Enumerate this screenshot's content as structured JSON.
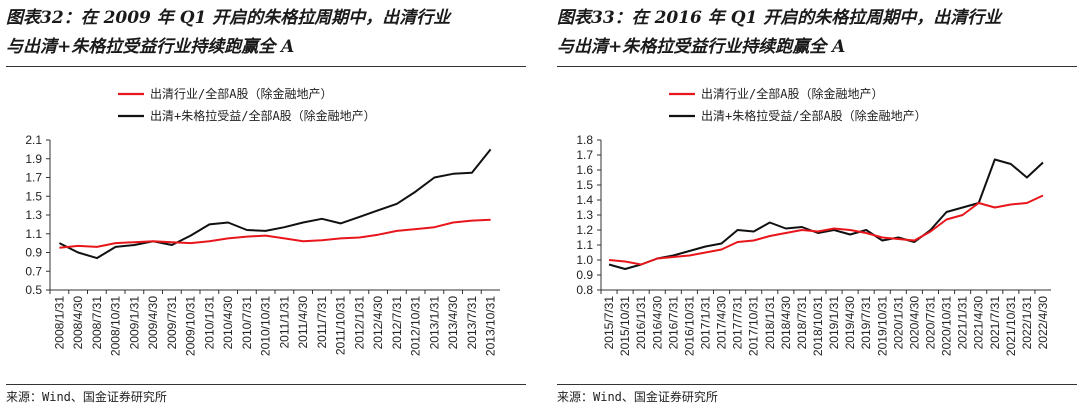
{
  "charts": [
    {
      "title_line1": "图表32：在 2009 年 Q1 开启的朱格拉周期中，出清行业",
      "title_line2": "与出清+朱格拉受益行业持续跑赢全 A",
      "source": "来源：Wind、国金证券研究所"
    },
    {
      "title_line1": "图表33：在 2016 年 Q1 开启的朱格拉周期中，出清行业",
      "title_line2": "与出清+朱格拉受益行业持续跑赢全 A",
      "source": "来源：Wind、国金证券研究所"
    }
  ],
  "colors": {
    "series_red": "#e8161b",
    "series_black": "#111111",
    "axis": "#333333"
  },
  "chart_data": [
    {
      "type": "line",
      "ylim": [
        0.5,
        2.1
      ],
      "yticks": [
        "2.1",
        "1.9",
        "1.7",
        "1.5",
        "1.3",
        "1.1",
        "0.9",
        "0.7",
        "0.5"
      ],
      "x_labels": [
        "2008/1/31",
        "2008/4/30",
        "2008/7/31",
        "2008/10/31",
        "2009/1/31",
        "2009/4/30",
        "2009/7/31",
        "2009/10/31",
        "2010/1/31",
        "2010/4/30",
        "2010/7/31",
        "2010/10/31",
        "2011/1/31",
        "2011/4/30",
        "2011/7/31",
        "2011/10/31",
        "2012/1/31",
        "2012/4/30",
        "2012/7/31",
        "2012/10/31",
        "2013/1/31",
        "2013/4/30",
        "2013/7/31",
        "2013/10/31"
      ],
      "series": [
        {
          "name": "出清行业/全部A股（除金融地产）",
          "color": "#e8161b",
          "values": [
            0.95,
            0.97,
            0.96,
            1.0,
            1.01,
            1.02,
            1.01,
            1.0,
            1.02,
            1.05,
            1.07,
            1.08,
            1.05,
            1.02,
            1.03,
            1.05,
            1.06,
            1.09,
            1.13,
            1.15,
            1.17,
            1.22,
            1.24,
            1.25
          ]
        },
        {
          "name": "出清+朱格拉受益/全部A股（除金融地产）",
          "color": "#111111",
          "values": [
            1.0,
            0.9,
            0.84,
            0.96,
            0.98,
            1.02,
            0.98,
            1.08,
            1.2,
            1.22,
            1.14,
            1.13,
            1.17,
            1.22,
            1.26,
            1.21,
            1.28,
            1.35,
            1.42,
            1.55,
            1.7,
            1.74,
            1.75,
            2.0
          ]
        }
      ],
      "legend": "top-left"
    },
    {
      "type": "line",
      "ylim": [
        0.8,
        1.8
      ],
      "yticks": [
        "1.8",
        "1.7",
        "1.6",
        "1.5",
        "1.4",
        "1.3",
        "1.2",
        "1.1",
        "1.0",
        "0.9",
        "0.8"
      ],
      "x_labels": [
        "2015/7/31",
        "2015/10/31",
        "2016/1/31",
        "2016/4/30",
        "2016/7/31",
        "2016/10/31",
        "2017/1/31",
        "2017/4/30",
        "2017/7/31",
        "2017/10/31",
        "2018/1/31",
        "2018/4/30",
        "2018/7/31",
        "2018/10/31",
        "2019/1/31",
        "2019/4/30",
        "2019/7/31",
        "2019/10/31",
        "2020/1/31",
        "2020/4/30",
        "2020/7/31",
        "2020/10/31",
        "2021/1/31",
        "2021/4/30",
        "2021/7/31",
        "2021/10/31",
        "2022/1/31",
        "2022/4/30"
      ],
      "series": [
        {
          "name": "出清行业/全部A股（除金融地产）",
          "color": "#e8161b",
          "values": [
            1.0,
            0.99,
            0.97,
            1.01,
            1.02,
            1.03,
            1.05,
            1.07,
            1.12,
            1.13,
            1.16,
            1.18,
            1.2,
            1.19,
            1.21,
            1.2,
            1.18,
            1.15,
            1.14,
            1.13,
            1.19,
            1.27,
            1.3,
            1.38,
            1.35,
            1.37,
            1.38,
            1.43
          ]
        },
        {
          "name": "出清+朱格拉受益/全部A股（除金融地产）",
          "color": "#111111",
          "values": [
            0.97,
            0.94,
            0.97,
            1.01,
            1.03,
            1.06,
            1.09,
            1.11,
            1.2,
            1.19,
            1.25,
            1.21,
            1.22,
            1.18,
            1.2,
            1.17,
            1.2,
            1.13,
            1.15,
            1.12,
            1.2,
            1.32,
            1.35,
            1.38,
            1.67,
            1.64,
            1.55,
            1.65
          ]
        }
      ],
      "legend": "top-left"
    }
  ]
}
